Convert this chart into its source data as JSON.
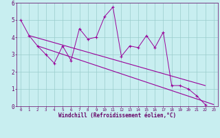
{
  "xlabel": "Windchill (Refroidissement éolien,°C)",
  "background_color": "#c8eef0",
  "line_color": "#990099",
  "grid_color": "#99cccc",
  "text_color": "#660066",
  "spine_color": "#660066",
  "xlim": [
    -0.5,
    23.5
  ],
  "ylim": [
    0,
    6
  ],
  "xticks": [
    0,
    1,
    2,
    3,
    4,
    5,
    6,
    7,
    8,
    9,
    10,
    11,
    12,
    13,
    14,
    15,
    16,
    17,
    18,
    19,
    20,
    21,
    22,
    23
  ],
  "yticks": [
    0,
    1,
    2,
    3,
    4,
    5,
    6
  ],
  "data_x": [
    0,
    1,
    2,
    3,
    4,
    5,
    6,
    7,
    8,
    9,
    10,
    11,
    12,
    13,
    14,
    15,
    16,
    17,
    18,
    19,
    20,
    21,
    22
  ],
  "data_y": [
    5.0,
    4.1,
    3.5,
    3.0,
    2.5,
    3.5,
    2.65,
    4.5,
    3.9,
    4.0,
    5.2,
    5.75,
    2.9,
    3.5,
    3.4,
    4.1,
    3.4,
    4.3,
    1.2,
    1.2,
    1.0,
    0.6,
    0.1
  ],
  "trend1_x": [
    1,
    22
  ],
  "trend1_y": [
    4.1,
    1.2
  ],
  "trend2_x": [
    2,
    23
  ],
  "trend2_y": [
    3.5,
    0.1
  ],
  "marker": "+"
}
